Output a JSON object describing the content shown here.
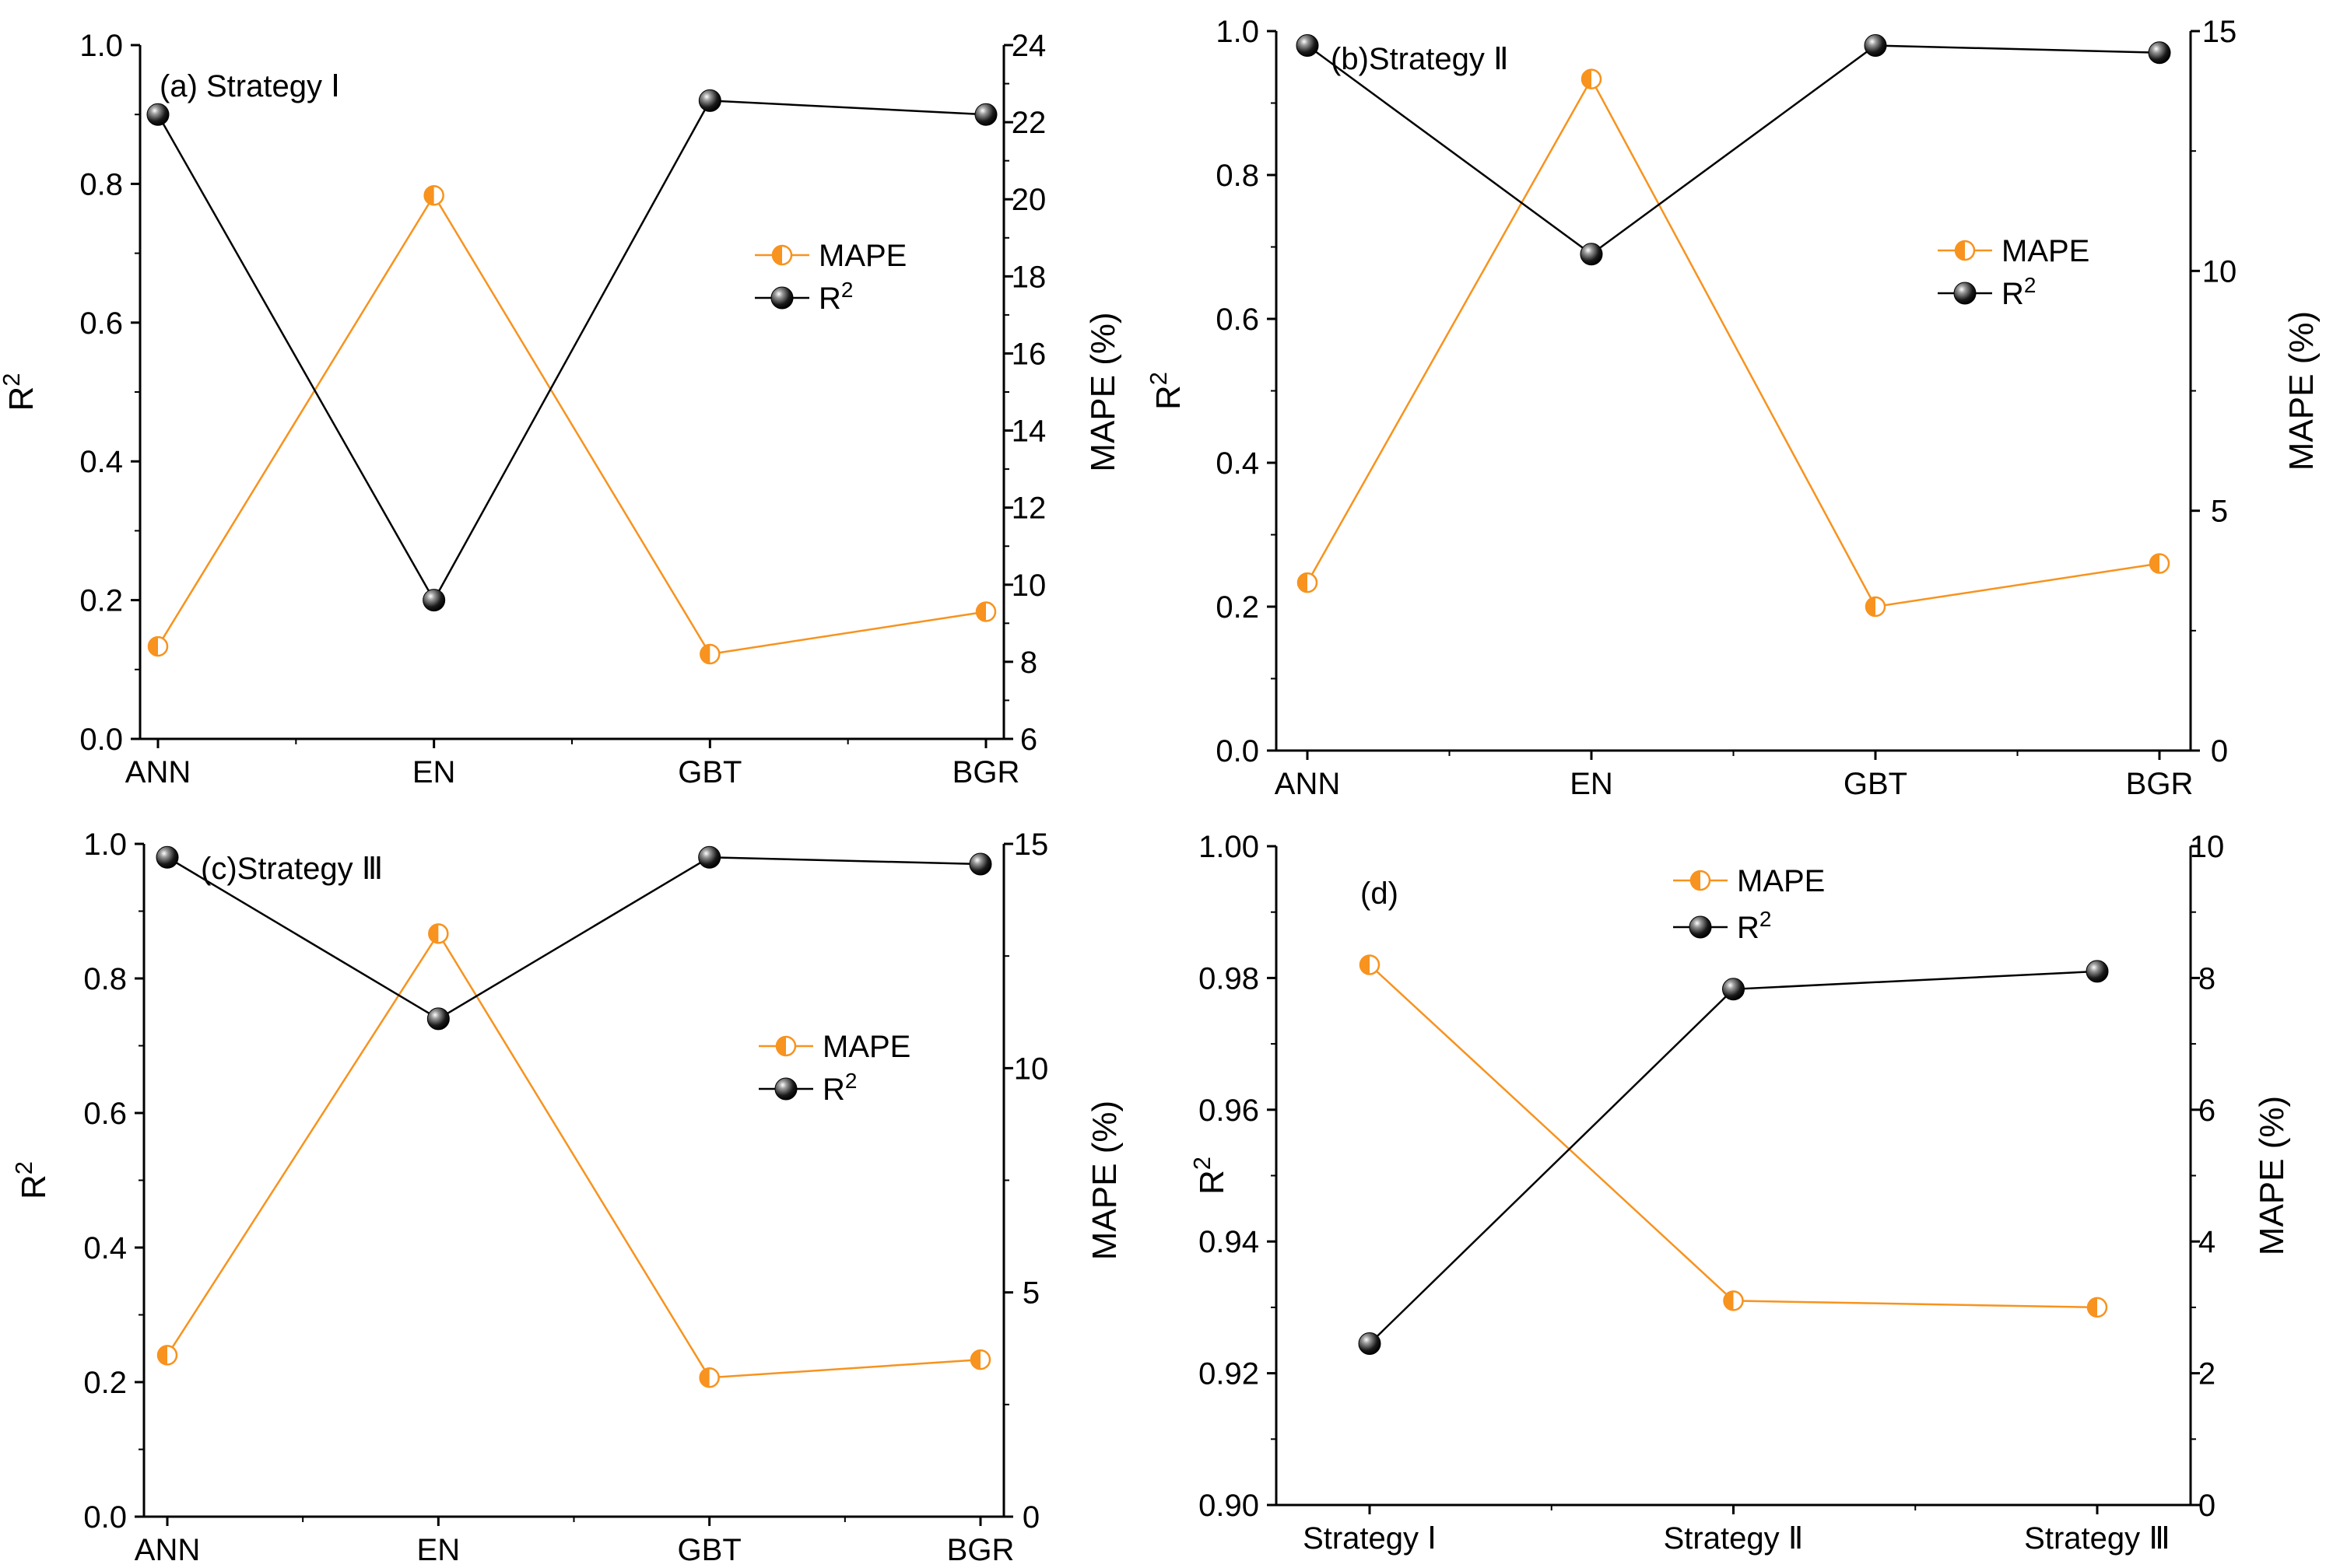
{
  "colors": {
    "mape": "#F7931E",
    "r2": "#000000",
    "axis": "#000000"
  },
  "chart_data": [
    {
      "type": "line",
      "panel": "a",
      "title": "(a) Strategy Ⅰ",
      "categories": [
        "ANN",
        "EN",
        "GBT",
        "BGR"
      ],
      "left_axis": {
        "label": "R²",
        "label_base": "R",
        "label_sup": "2",
        "ylim": [
          0,
          1
        ],
        "ticks": [
          "0.0",
          "0.2",
          "0.4",
          "0.6",
          "0.8",
          "1.0"
        ]
      },
      "right_axis": {
        "label": "MAPE (%)",
        "ylim": [
          6,
          24
        ],
        "ticks": [
          "6",
          "8",
          "10",
          "12",
          "14",
          "16",
          "18",
          "20",
          "22",
          "24"
        ]
      },
      "series": [
        {
          "name": "MAPE",
          "axis": "right",
          "values": [
            8.4,
            20.1,
            8.2,
            9.3
          ]
        },
        {
          "name": "R²",
          "name_base": "R",
          "name_sup": "2",
          "axis": "left",
          "values": [
            0.9,
            0.2,
            0.92,
            0.9
          ]
        }
      ],
      "legend": "right-middle"
    },
    {
      "type": "line",
      "panel": "b",
      "title": "(b)Strategy Ⅱ",
      "categories": [
        "ANN",
        "EN",
        "GBT",
        "BGR"
      ],
      "left_axis": {
        "label": "R²",
        "label_base": "R",
        "label_sup": "2",
        "ylim": [
          0,
          1
        ],
        "ticks": [
          "0.0",
          "0.2",
          "0.4",
          "0.6",
          "0.8",
          "1.0"
        ]
      },
      "right_axis": {
        "label": "MAPE (%)",
        "ylim": [
          0,
          15
        ],
        "ticks": [
          "0",
          "5",
          "10",
          "15"
        ]
      },
      "series": [
        {
          "name": "MAPE",
          "axis": "right",
          "values": [
            3.5,
            14.0,
            3.0,
            3.9
          ]
        },
        {
          "name": "R²",
          "name_base": "R",
          "name_sup": "2",
          "axis": "left",
          "values": [
            0.98,
            0.69,
            0.98,
            0.97
          ]
        }
      ],
      "legend": "right-upper"
    },
    {
      "type": "line",
      "panel": "c",
      "title": "(c)Strategy Ⅲ",
      "categories": [
        "ANN",
        "EN",
        "GBT",
        "BGR"
      ],
      "left_axis": {
        "label": "R²",
        "label_base": "R",
        "label_sup": "2",
        "ylim": [
          0,
          1
        ],
        "ticks": [
          "0.0",
          "0.2",
          "0.4",
          "0.6",
          "0.8",
          "1.0"
        ]
      },
      "right_axis": {
        "label": "MAPE (%)",
        "ylim": [
          0,
          15
        ],
        "ticks": [
          "0",
          "5",
          "10",
          "15"
        ]
      },
      "series": [
        {
          "name": "MAPE",
          "axis": "right",
          "values": [
            3.6,
            13.0,
            3.1,
            3.5
          ]
        },
        {
          "name": "R²",
          "name_base": "R",
          "name_sup": "2",
          "axis": "left",
          "values": [
            0.98,
            0.74,
            0.98,
            0.97
          ]
        }
      ],
      "legend": "right-middle"
    },
    {
      "type": "line",
      "panel": "d",
      "title": "(d)",
      "categories": [
        "Strategy Ⅰ",
        "Strategy Ⅱ",
        "Strategy Ⅲ"
      ],
      "left_axis": {
        "label": "R²",
        "label_base": "R",
        "label_sup": "2",
        "ylim": [
          0.9,
          1.0
        ],
        "ticks": [
          "0.90",
          "0.92",
          "0.94",
          "0.96",
          "0.98",
          "1.00"
        ]
      },
      "right_axis": {
        "label": "MAPE (%)",
        "ylim": [
          0,
          10
        ],
        "ticks": [
          "0",
          "2",
          "4",
          "6",
          "8",
          "10"
        ]
      },
      "series": [
        {
          "name": "MAPE",
          "axis": "right",
          "values": [
            8.2,
            3.1,
            3.0
          ]
        },
        {
          "name": "R²",
          "name_base": "R",
          "name_sup": "2",
          "axis": "left",
          "values": [
            0.9245,
            0.9783,
            0.981
          ]
        }
      ],
      "legend": "top-center"
    }
  ]
}
